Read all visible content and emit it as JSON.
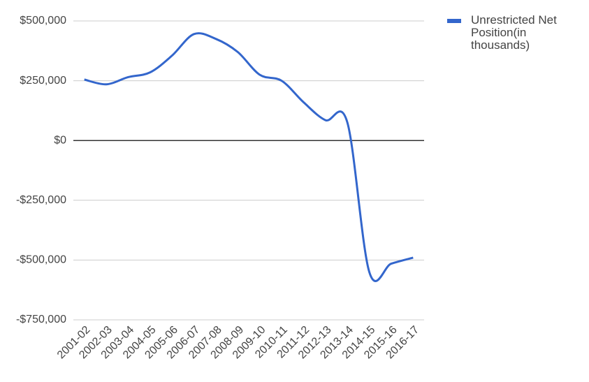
{
  "chart_data": {
    "type": "line",
    "categories": [
      "2001-02",
      "2002-03",
      "2003-04",
      "2004-05",
      "2005-06",
      "2006-07",
      "2007-08",
      "2008-09",
      "2009-10",
      "2010-11",
      "2011-12",
      "2012-13",
      "2013-14",
      "2014-15",
      "2015-16",
      "2016-17"
    ],
    "series": [
      {
        "name": "Unrestricted Net Position(in thousands)",
        "color": "#3366cc",
        "values": [
          255000,
          235000,
          265000,
          285000,
          355000,
          445000,
          425000,
          370000,
          275000,
          250000,
          160000,
          85000,
          75000,
          -550000,
          -515000,
          -490000
        ]
      }
    ],
    "ylim": [
      -750000,
      500000
    ],
    "yticks": [
      {
        "value": -750000,
        "label": "-$750,000"
      },
      {
        "value": -500000,
        "label": "-$500,000"
      },
      {
        "value": -250000,
        "label": "-$250,000"
      },
      {
        "value": 0,
        "label": "$0"
      },
      {
        "value": 250000,
        "label": "$250,000"
      },
      {
        "value": 500000,
        "label": "$500,000"
      }
    ],
    "grid": true,
    "legend": "right"
  }
}
